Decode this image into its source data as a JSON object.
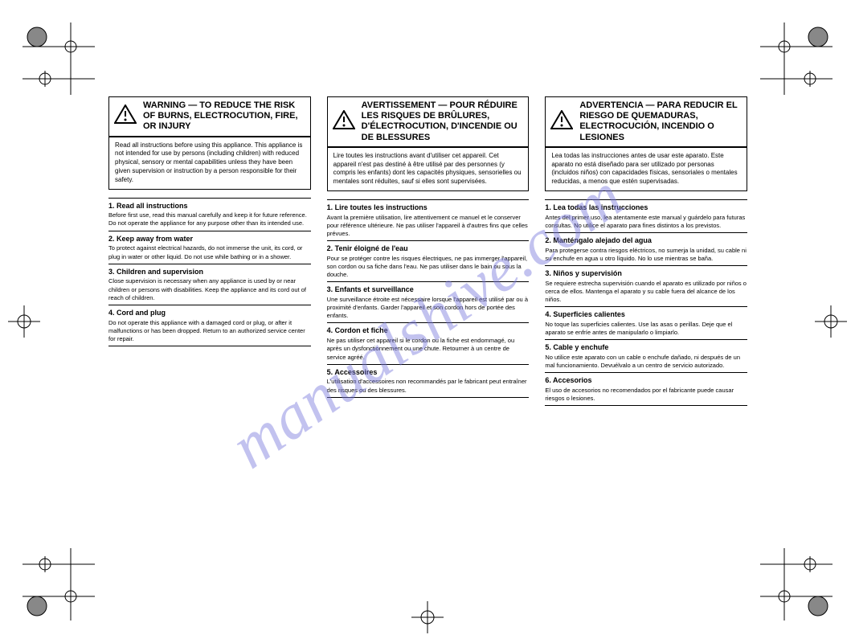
{
  "watermark": "manualshive.com",
  "columns": [
    {
      "lang": "EN",
      "warning_header": "WARNING — TO REDUCE THE RISK OF BURNS, ELECTROCUTION, FIRE, OR INJURY",
      "warning_body": "Read all instructions before using this appliance. This appliance is not intended for use by persons (including children) with reduced physical, sensory or mental capabilities unless they have been given supervision or instruction by a person responsible for their safety.",
      "sections": [
        {
          "title": "1. Read all instructions",
          "body": "Before first use, read this manual carefully and keep it for future reference. Do not operate the appliance for any purpose other than its intended use."
        },
        {
          "title": "2. Keep away from water",
          "body": "To protect against electrical hazards, do not immerse the unit, its cord, or plug in water or other liquid. Do not use while bathing or in a shower."
        },
        {
          "title": "3. Children and supervision",
          "body": "Close supervision is necessary when any appliance is used by or near children or persons with disabilities. Keep the appliance and its cord out of reach of children."
        },
        {
          "title": "4. Cord and plug",
          "body": "Do not operate this appliance with a damaged cord or plug, or after it malfunctions or has been dropped. Return to an authorized service center for repair."
        }
      ]
    },
    {
      "lang": "FR",
      "warning_header": "AVERTISSEMENT — POUR RÉDUIRE LES RISQUES DE BRÛLURES, D'ÉLECTROCUTION, D'INCENDIE OU DE BLESSURES",
      "warning_body": "Lire toutes les instructions avant d'utiliser cet appareil. Cet appareil n'est pas destiné à être utilisé par des personnes (y compris les enfants) dont les capacités physiques, sensorielles ou mentales sont réduites, sauf si elles sont supervisées.",
      "sections": [
        {
          "title": "1. Lire toutes les instructions",
          "body": "Avant la première utilisation, lire attentivement ce manuel et le conserver pour référence ultérieure. Ne pas utiliser l'appareil à d'autres fins que celles prévues."
        },
        {
          "title": "2. Tenir éloigné de l'eau",
          "body": "Pour se protéger contre les risques électriques, ne pas immerger l'appareil, son cordon ou sa fiche dans l'eau. Ne pas utiliser dans le bain ou sous la douche."
        },
        {
          "title": "3. Enfants et surveillance",
          "body": "Une surveillance étroite est nécessaire lorsque l'appareil est utilisé par ou à proximité d'enfants. Garder l'appareil et son cordon hors de portée des enfants."
        },
        {
          "title": "4. Cordon et fiche",
          "body": "Ne pas utiliser cet appareil si le cordon ou la fiche est endommagé, ou après un dysfonctionnement ou une chute. Retourner à un centre de service agréé."
        },
        {
          "title": "5. Accessoires",
          "body": "L'utilisation d'accessoires non recommandés par le fabricant peut entraîner des risques ou des blessures."
        }
      ]
    },
    {
      "lang": "ES",
      "warning_header": "ADVERTENCIA — PARA REDUCIR EL RIESGO DE QUEMADURAS, ELECTROCUCIÓN, INCENDIO O LESIONES",
      "warning_body": "Lea todas las instrucciones antes de usar este aparato. Este aparato no está diseñado para ser utilizado por personas (incluidos niños) con capacidades físicas, sensoriales o mentales reducidas, a menos que estén supervisadas.",
      "sections": [
        {
          "title": "1. Lea todas las instrucciones",
          "body": "Antes del primer uso, lea atentamente este manual y guárdelo para futuras consultas. No utilice el aparato para fines distintos a los previstos."
        },
        {
          "title": "2. Manténgalo alejado del agua",
          "body": "Para protegerse contra riesgos eléctricos, no sumerja la unidad, su cable ni su enchufe en agua u otro líquido. No lo use mientras se baña."
        },
        {
          "title": "3. Niños y supervisión",
          "body": "Se requiere estrecha supervisión cuando el aparato es utilizado por niños o cerca de ellos. Mantenga el aparato y su cable fuera del alcance de los niños."
        },
        {
          "title": "4. Superficies calientes",
          "body": "No toque las superficies calientes. Use las asas o perillas. Deje que el aparato se enfríe antes de manipularlo o limpiarlo."
        },
        {
          "title": "5. Cable y enchufe",
          "body": "No utilice este aparato con un cable o enchufe dañado, ni después de un mal funcionamiento. Devuélvalo a un centro de servicio autorizado."
        },
        {
          "title": "6. Accesorios",
          "body": "El uso de accesorios no recomendados por el fabricante puede causar riesgos o lesiones."
        }
      ]
    }
  ],
  "page_number_left": "",
  "page_number_right": ""
}
